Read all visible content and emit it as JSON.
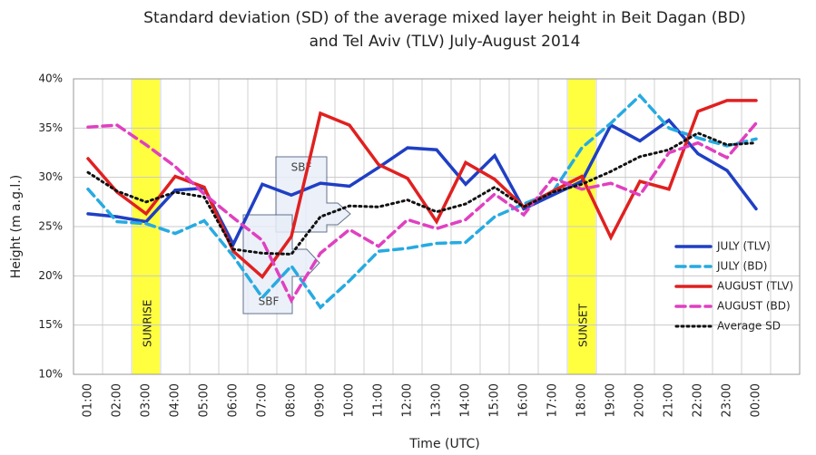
{
  "chart_data": {
    "type": "line",
    "title": [
      "Standard deviation (SD) of the average mixed layer height in Beit Dagan (BD)",
      "and Tel Aviv (TLV)  July-August 2014"
    ],
    "x_label": "Time (UTC)",
    "y_label": "Height (m a.g.l.)",
    "categories": [
      "01:00",
      "02:00",
      "03:00",
      "04:00",
      "05:00",
      "06:00",
      "07:00",
      "08:00",
      "09:00",
      "10:00",
      "11:00",
      "12:00",
      "13:00",
      "14:00",
      "15:00",
      "16:00",
      "17:00",
      "18:00",
      "19:00",
      "20:00",
      "21:00",
      "22:00",
      "23:00",
      "00:00",
      null
    ],
    "ylim": [
      10,
      40
    ],
    "yticks": [
      {
        "value": 10,
        "label": "10%"
      },
      {
        "value": 15,
        "label": "15%"
      },
      {
        "value": 20,
        "label": "20%"
      },
      {
        "value": 25,
        "label": "25%"
      },
      {
        "value": 30,
        "label": "30%"
      },
      {
        "value": 35,
        "label": "35%"
      },
      {
        "value": 40,
        "label": "40%"
      }
    ],
    "grid": true,
    "legend": "right",
    "series": [
      {
        "name": "JULY (TLV)",
        "color": "#1f3fc4",
        "dash": "solid",
        "values": [
          26.3,
          26.0,
          25.5,
          28.7,
          28.9,
          23.2,
          29.3,
          28.2,
          29.4,
          29.1,
          31.0,
          33.0,
          32.8,
          29.3,
          32.2,
          26.8,
          28.2,
          29.6,
          35.3,
          33.7,
          35.8,
          32.4,
          30.7,
          26.8,
          null
        ]
      },
      {
        "name": "JULY (BD)",
        "color": "#27aae1",
        "dash": "dashed",
        "values": [
          28.8,
          25.5,
          25.3,
          24.3,
          25.6,
          22.0,
          17.8,
          21.0,
          16.8,
          19.5,
          22.5,
          22.8,
          23.3,
          23.4,
          26.0,
          27.3,
          28.5,
          33.0,
          35.5,
          38.3,
          35.0,
          34.0,
          33.2,
          33.9,
          null
        ]
      },
      {
        "name": "AUGUST (TLV)",
        "color": "#e02020",
        "dash": "solid",
        "values": [
          31.9,
          28.5,
          26.3,
          30.1,
          29.0,
          22.5,
          19.9,
          24.0,
          36.5,
          35.3,
          31.3,
          29.9,
          25.5,
          31.5,
          29.8,
          27.0,
          28.6,
          30.1,
          23.9,
          29.6,
          28.8,
          36.7,
          37.8,
          37.8,
          null
        ]
      },
      {
        "name": "AUGUST (BD)",
        "color": "#e040c0",
        "dash": "dashed",
        "values": [
          35.1,
          35.3,
          33.3,
          31.1,
          28.3,
          25.9,
          23.6,
          17.5,
          22.3,
          24.7,
          23.0,
          25.7,
          24.8,
          25.7,
          28.3,
          26.2,
          29.9,
          28.8,
          29.4,
          28.2,
          32.5,
          33.5,
          32.0,
          35.5,
          null
        ]
      },
      {
        "name": "Average SD",
        "color": "#111111",
        "dash": "dotted",
        "values": [
          30.5,
          28.6,
          27.5,
          28.5,
          28.0,
          22.7,
          22.3,
          22.2,
          26.0,
          27.1,
          27.0,
          27.7,
          26.5,
          27.3,
          29.0,
          27.0,
          28.5,
          29.3,
          30.6,
          32.1,
          32.8,
          34.5,
          33.3,
          33.5,
          null
        ]
      }
    ],
    "highlights": [
      {
        "label": "SUNRISE",
        "at": "03:00",
        "color": "#ffff40"
      },
      {
        "label": "SUNSET",
        "at": "18:00",
        "color": "#ffff40"
      }
    ],
    "annotations": [
      "SBF",
      "SBF"
    ]
  }
}
